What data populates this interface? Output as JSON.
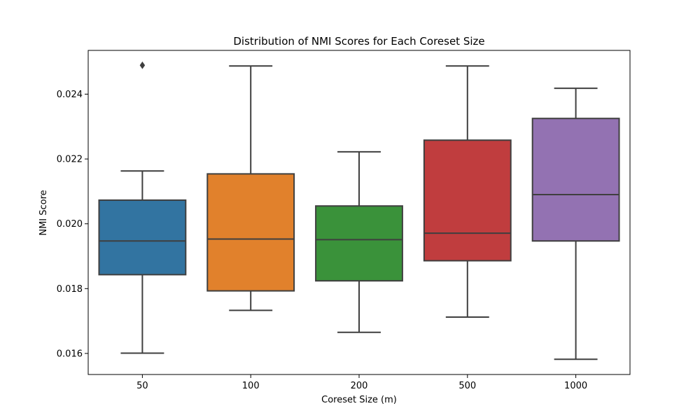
{
  "chart_data": {
    "type": "box",
    "title": "Distribution of NMI Scores for Each Coreset Size",
    "xlabel": "Coreset Size (m)",
    "ylabel": "NMI Score",
    "ylim": [
      0.01535,
      0.02535
    ],
    "yticks": [
      "0.016",
      "0.018",
      "0.020",
      "0.022",
      "0.024"
    ],
    "ytick_values": [
      0.016,
      0.018,
      0.02,
      0.022,
      0.024
    ],
    "grid": false,
    "categories": [
      "50",
      "100",
      "200",
      "500",
      "1000"
    ],
    "boxes": [
      {
        "category": "50",
        "whisker_low": 0.01601,
        "q1": 0.01843,
        "median": 0.01947,
        "q3": 0.02073,
        "whisker_high": 0.02163,
        "outliers": [
          0.02489
        ],
        "color": "#3274a1"
      },
      {
        "category": "100",
        "whisker_low": 0.01733,
        "q1": 0.01793,
        "median": 0.01953,
        "q3": 0.02154,
        "whisker_high": 0.02487,
        "outliers": [],
        "color": "#e1812c"
      },
      {
        "category": "200",
        "whisker_low": 0.01665,
        "q1": 0.01824,
        "median": 0.01951,
        "q3": 0.02055,
        "whisker_high": 0.02222,
        "outliers": [],
        "color": "#3a923a"
      },
      {
        "category": "500",
        "whisker_low": 0.01712,
        "q1": 0.01886,
        "median": 0.01971,
        "q3": 0.02258,
        "whisker_high": 0.02487,
        "outliers": [],
        "color": "#c03d3e"
      },
      {
        "category": "1000",
        "whisker_low": 0.01582,
        "q1": 0.01947,
        "median": 0.0209,
        "q3": 0.02325,
        "whisker_high": 0.02418,
        "outliers": [],
        "color": "#9372b2"
      }
    ],
    "line_color": "#3f3f3f"
  }
}
